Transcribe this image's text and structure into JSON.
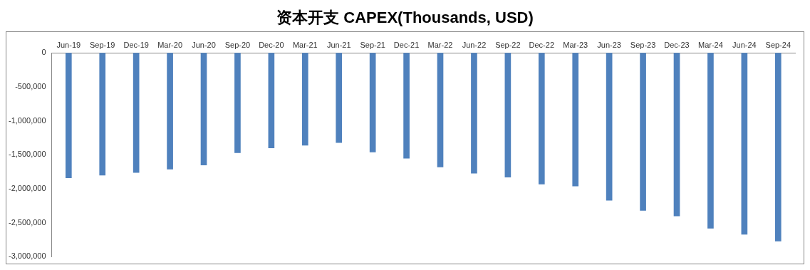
{
  "chart_data": {
    "type": "bar",
    "title": "资本开支 CAPEX(Thousands, USD)",
    "categories": [
      "Jun-19",
      "Sep-19",
      "Dec-19",
      "Mar-20",
      "Jun-20",
      "Sep-20",
      "Dec-20",
      "Mar-21",
      "Jun-21",
      "Sep-21",
      "Dec-21",
      "Mar-22",
      "Jun-22",
      "Sep-22",
      "Dec-22",
      "Mar-23",
      "Jun-23",
      "Sep-23",
      "Dec-23",
      "Mar-24",
      "Jun-24",
      "Sep-24"
    ],
    "values": [
      -1840000,
      -1800000,
      -1760000,
      -1710000,
      -1650000,
      -1470000,
      -1400000,
      -1360000,
      -1320000,
      -1460000,
      -1550000,
      -1680000,
      -1770000,
      -1830000,
      -1930000,
      -1960000,
      -2170000,
      -2320000,
      -2400000,
      -2580000,
      -2670000,
      -2770000
    ],
    "color": "#4f81bd",
    "ylim": [
      -3000000,
      0
    ],
    "yticks": [
      0,
      {
        "value": -500000,
        "label": "-500,000"
      },
      {
        "value": -1000000,
        "label": "-1,000,000"
      },
      {
        "value": -1500000,
        "label": "-1,500,000"
      },
      {
        "value": -2000000,
        "label": "-2,000,000"
      },
      {
        "value": -2500000,
        "label": "-2,500,000"
      },
      {
        "value": -3000000,
        "label": "-3,000,000"
      }
    ],
    "grid": false,
    "legend": false
  }
}
